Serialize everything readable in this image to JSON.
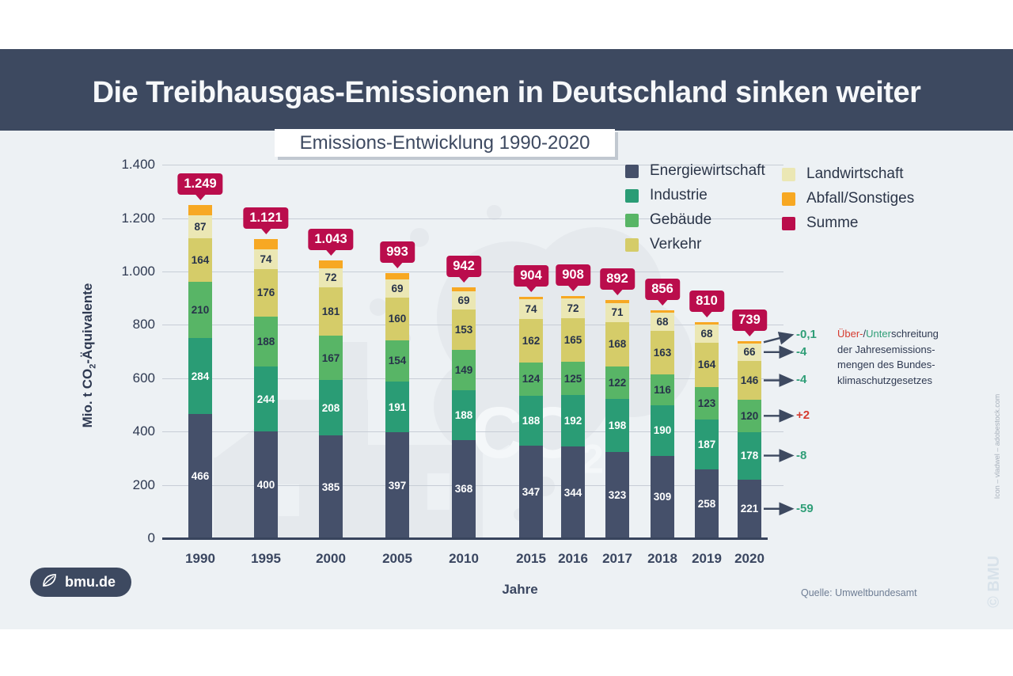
{
  "header": {
    "title": "Die Treibhausgas-Emissionen in Deutschland sinken weiter"
  },
  "subtitle": "Emissions-Entwicklung 1990-2020",
  "colors": {
    "band": "#3d4960",
    "chartbg": "#edf1f4",
    "energiewirtschaft": "#45506a",
    "industrie": "#2a9c75",
    "gebaeude": "#58b566",
    "verkehr": "#d5cc69",
    "landwirtschaft": "#ebe7b4",
    "abfall": "#f7a823",
    "summe": "#ba0d4c",
    "positive": "#d63b2f",
    "negative": "#2f9e77",
    "arrow": "#3d4960"
  },
  "axis": {
    "ylabel_pre": "Mio. t CO",
    "ylabel_sub": "2",
    "ylabel_post": "-Äquivalente",
    "xlabel": "Jahre"
  },
  "chart_data": {
    "type": "bar",
    "stacked": true,
    "title": "Emissions-Entwicklung 1990-2020",
    "xlabel": "Jahre",
    "ylabel": "Mio. t CO2-Äquivalente",
    "ylim": [
      0,
      1400
    ],
    "grid": true,
    "ytick_labels": [
      "0",
      "200",
      "400",
      "600",
      "800",
      "1.000",
      "1.200",
      "1.400"
    ],
    "ytick_values": [
      0,
      200,
      400,
      600,
      800,
      1000,
      1200,
      1400
    ],
    "categories": [
      "1990",
      "1995",
      "2000",
      "2005",
      "2010",
      "2015",
      "2016",
      "2017",
      "2018",
      "2019",
      "2020"
    ],
    "series": [
      {
        "name": "Energiewirtschaft",
        "color_key": "energiewirtschaft",
        "label_style": "light",
        "values": [
          466,
          400,
          385,
          397,
          368,
          347,
          344,
          323,
          309,
          258,
          221
        ]
      },
      {
        "name": "Industrie",
        "color_key": "industrie",
        "label_style": "light",
        "values": [
          284,
          244,
          208,
          191,
          188,
          188,
          192,
          198,
          190,
          187,
          178
        ]
      },
      {
        "name": "Gebäude",
        "color_key": "gebaeude",
        "label_style": "dark",
        "values": [
          210,
          188,
          167,
          154,
          149,
          124,
          125,
          122,
          116,
          123,
          120
        ]
      },
      {
        "name": "Verkehr",
        "color_key": "verkehr",
        "label_style": "dark",
        "values": [
          164,
          176,
          181,
          160,
          153,
          162,
          165,
          168,
          163,
          164,
          146
        ]
      },
      {
        "name": "Landwirtschaft",
        "color_key": "landwirtschaft",
        "label_style": "dark",
        "values": [
          87,
          74,
          72,
          69,
          69,
          74,
          72,
          71,
          68,
          68,
          66
        ]
      },
      {
        "name": "Abfall/Sonstiges",
        "color_key": "abfall",
        "label_style": "dark",
        "labels_hidden": true,
        "values": [
          38,
          39,
          30,
          22,
          15,
          9,
          10,
          10,
          10,
          10,
          8
        ]
      }
    ],
    "totals": [
      1249,
      1121,
      1043,
      993,
      942,
      904,
      908,
      892,
      856,
      810,
      739
    ],
    "total_labels": [
      "1.249",
      "1.121",
      "1.043",
      "993",
      "942",
      "904",
      "908",
      "892",
      "856",
      "810",
      "739"
    ],
    "totals_series_name": "Summe"
  },
  "legend": {
    "column1": [
      {
        "label": "Energiewirtschaft",
        "color_key": "energiewirtschaft"
      },
      {
        "label": "Industrie",
        "color_key": "industrie"
      },
      {
        "label": "Gebäude",
        "color_key": "gebaeude"
      },
      {
        "label": "Verkehr",
        "color_key": "verkehr"
      }
    ],
    "column2": [
      {
        "label": "Landwirtschaft",
        "color_key": "landwirtschaft"
      },
      {
        "label": "Abfall/Sonstiges",
        "color_key": "abfall"
      },
      {
        "label": "Summe",
        "color_key": "summe"
      }
    ]
  },
  "annotations": {
    "values": [
      {
        "text": "-0,1",
        "sentiment": "negative"
      },
      {
        "text": "-4",
        "sentiment": "negative"
      },
      {
        "text": "-4",
        "sentiment": "negative"
      },
      {
        "text": "+2",
        "sentiment": "positive"
      },
      {
        "text": "-8",
        "sentiment": "negative"
      },
      {
        "text": "-59",
        "sentiment": "negative"
      }
    ],
    "caption": {
      "part1": "Über-",
      "part2": "/",
      "part3": "Unter",
      "part4": "schreitung",
      "line2": "der Jahresemissions-",
      "line3": "mengen des Bundes-",
      "line4": "klimaschutzgesetzes"
    }
  },
  "watermark": {
    "co2_text": "CO",
    "co2_sub": "2"
  },
  "footer": {
    "logo_label": "bmu.de",
    "source": "Quelle: Umweltbundesamt"
  },
  "credits": {
    "icon_credit": "Icon – vladwel – adobestock.com",
    "copyright": "© BMU"
  }
}
